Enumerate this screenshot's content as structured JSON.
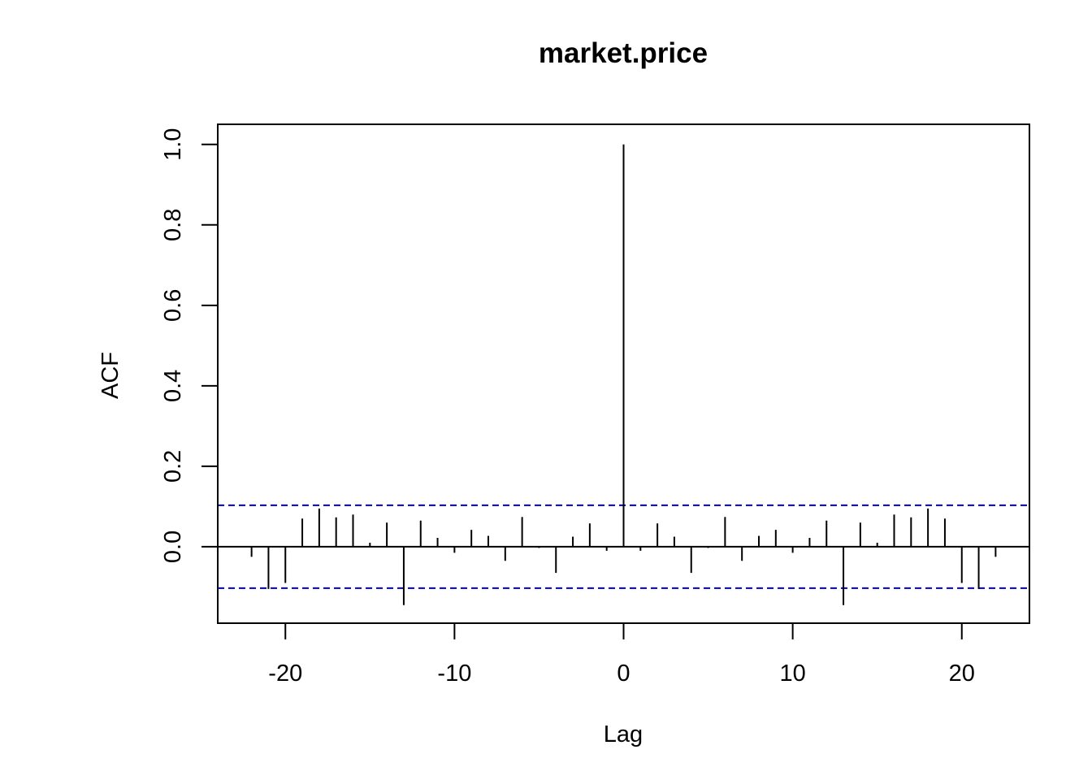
{
  "chart_data": {
    "type": "bar",
    "title": "market.price",
    "xlabel": "Lag",
    "ylabel": "ACF",
    "xlim": [
      -24,
      24
    ],
    "ylim": [
      -0.19,
      1.05
    ],
    "x_ticks": [
      -20,
      -10,
      0,
      10,
      20
    ],
    "x_tick_labels": [
      "-20",
      "-10",
      "0",
      "10",
      "20"
    ],
    "y_ticks": [
      0.0,
      0.2,
      0.4,
      0.6,
      0.8,
      1.0
    ],
    "y_tick_labels": [
      "0.0",
      "0.2",
      "0.4",
      "0.6",
      "0.8",
      "1.0"
    ],
    "grid": false,
    "zero_line": true,
    "confidence_bounds": [
      0.103,
      -0.103
    ],
    "confidence_color": "#0000cc",
    "bar_color": "#000000",
    "lags": [
      -22,
      -21,
      -20,
      -19,
      -18,
      -17,
      -16,
      -15,
      -14,
      -13,
      -12,
      -11,
      -10,
      -9,
      -8,
      -7,
      -6,
      -5,
      -4,
      -3,
      -2,
      -1,
      0,
      1,
      2,
      3,
      4,
      5,
      6,
      7,
      8,
      9,
      10,
      11,
      12,
      13,
      14,
      15,
      16,
      17,
      18,
      19,
      20,
      21,
      22
    ],
    "values": [
      -0.025,
      -0.105,
      -0.09,
      0.07,
      0.095,
      0.073,
      0.08,
      0.01,
      0.06,
      -0.145,
      0.065,
      0.022,
      -0.015,
      0.042,
      0.027,
      -0.035,
      0.074,
      -0.003,
      -0.065,
      0.025,
      0.058,
      -0.01,
      1.0,
      -0.01,
      0.058,
      0.025,
      -0.065,
      -0.003,
      0.074,
      -0.035,
      0.027,
      0.042,
      -0.015,
      0.022,
      0.065,
      -0.145,
      0.06,
      0.01,
      0.08,
      0.073,
      0.095,
      0.07,
      -0.09,
      -0.105,
      -0.025
    ]
  }
}
